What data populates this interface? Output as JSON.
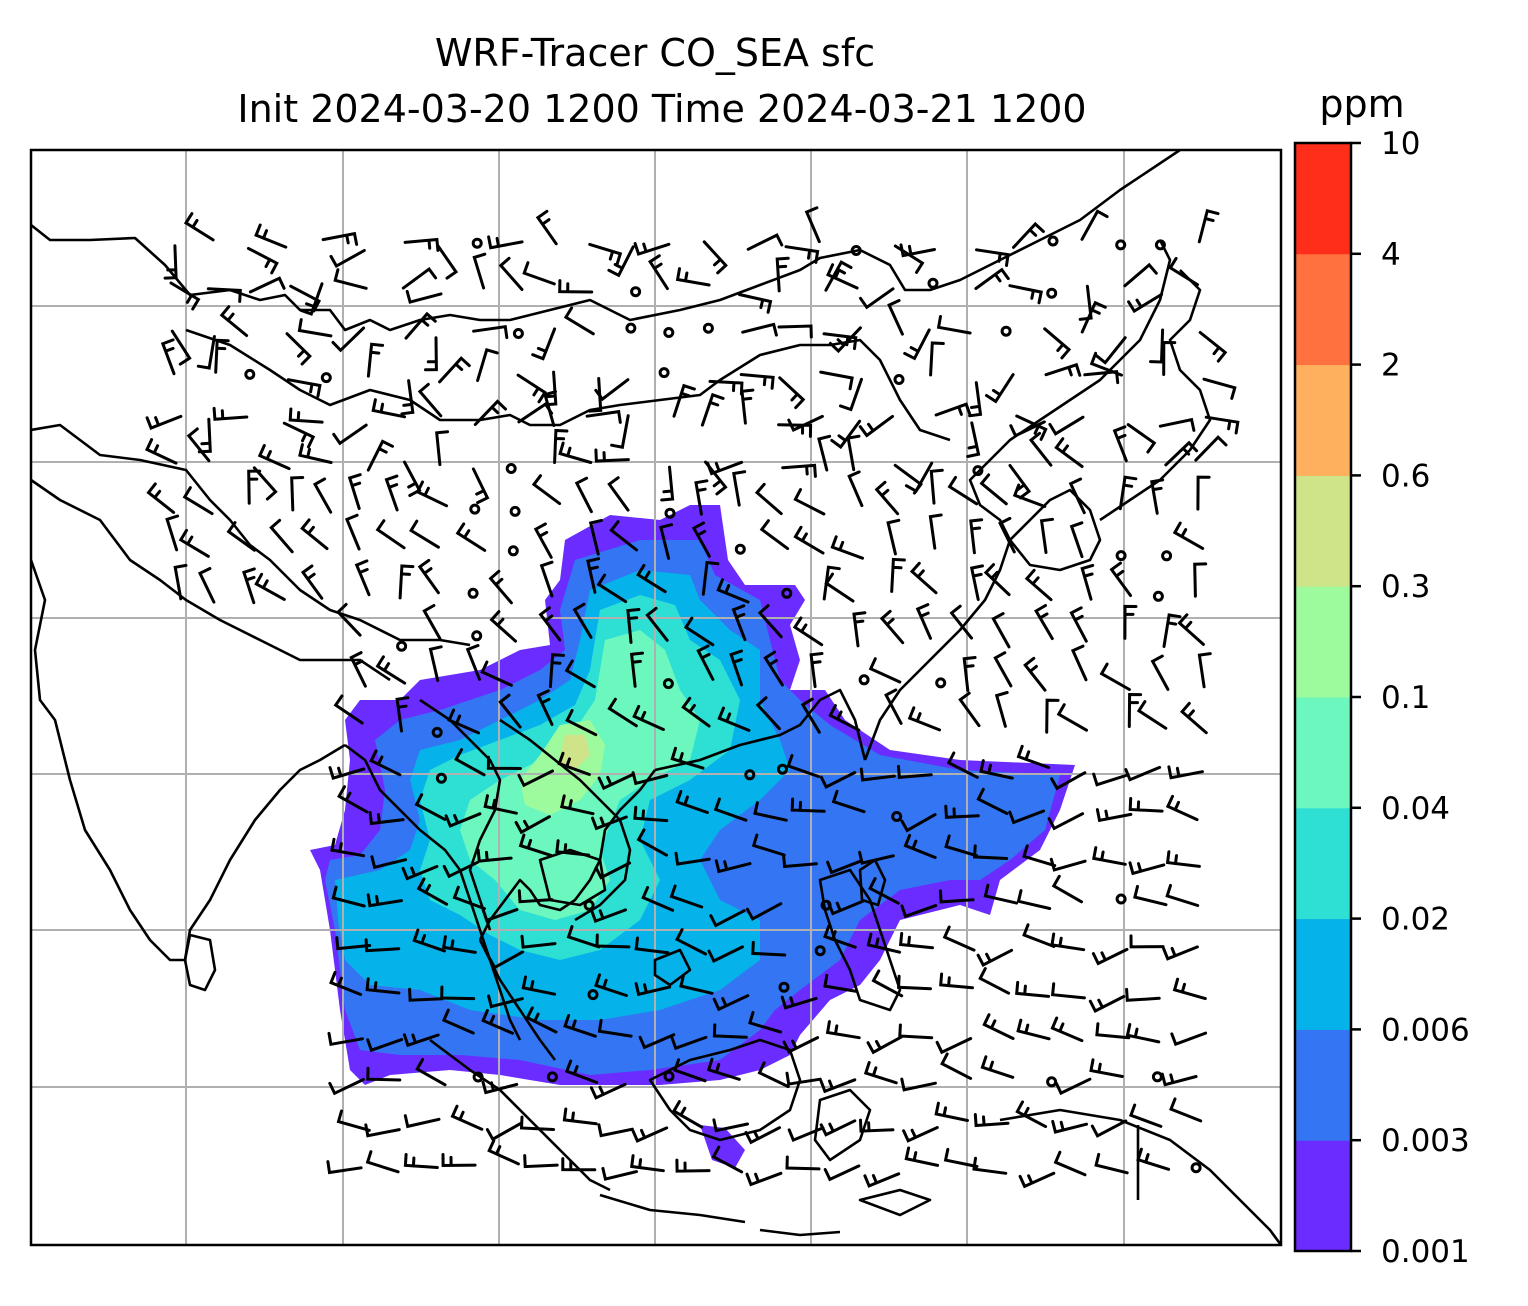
{
  "title_line1": "WRF-Tracer CO_SEA sfc",
  "title_line2": "Init 2024-03-20 1200 Time 2024-03-21 1200",
  "colorbar": {
    "unit": "ppm",
    "ticks": [
      "0.001",
      "0.003",
      "0.006",
      "0.02",
      "0.04",
      "0.1",
      "0.3",
      "0.6",
      "2",
      "4",
      "10"
    ],
    "colors": [
      "#6a2cff",
      "#3375f2",
      "#05b2e9",
      "#2ee0d3",
      "#6cf7be",
      "#9dfb9d",
      "#cfe389",
      "#feb05f",
      "#ff7240",
      "#ff2e1a"
    ]
  },
  "map": {
    "graticule": "on",
    "wind_barbs": "on",
    "coastlines": "on"
  }
}
